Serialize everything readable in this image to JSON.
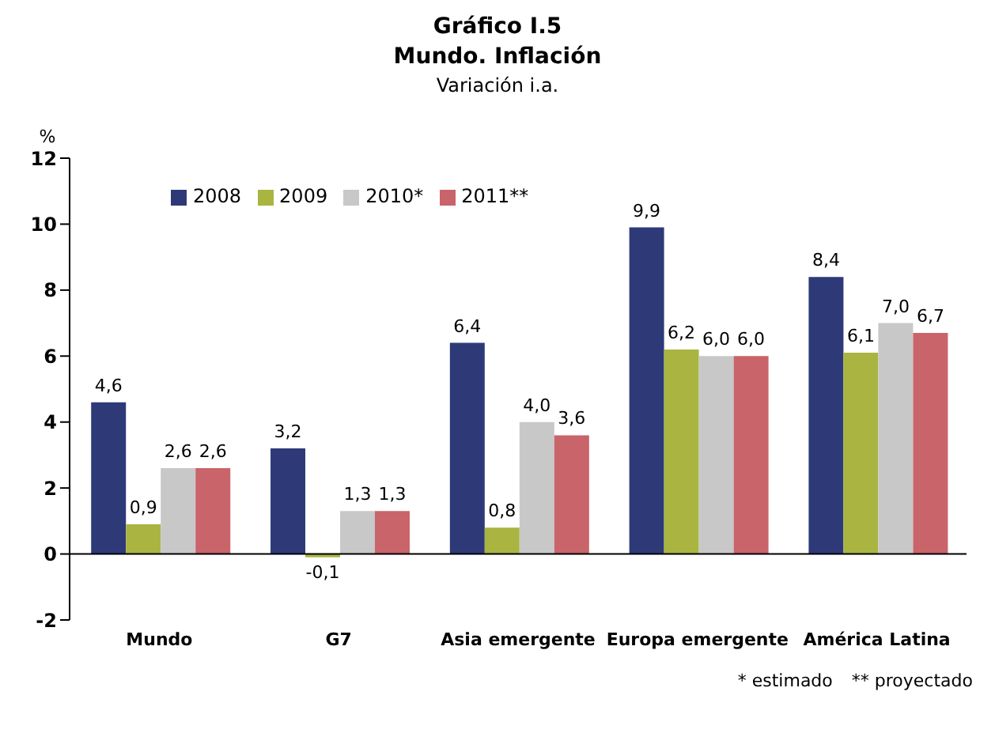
{
  "chart_data": {
    "type": "bar",
    "title": "Gráfico I.5\nMundo. Inflación",
    "subtitle": "Variación i.a.",
    "ylabel": "%",
    "categories": [
      "Mundo",
      "G7",
      "Asia emergente",
      "Europa emergente",
      "América Latina"
    ],
    "series": [
      {
        "name": "2008",
        "color": "#2e3a78",
        "values": [
          4.6,
          3.2,
          6.4,
          9.9,
          8.4
        ],
        "value_labels": [
          "4,6",
          "3,2",
          "6,4",
          "9,9",
          "8,4"
        ]
      },
      {
        "name": "2009",
        "color": "#a9b540",
        "values": [
          0.9,
          -0.1,
          0.8,
          6.2,
          6.1
        ],
        "value_labels": [
          "0,9",
          "-0,1",
          "0,8",
          "6,2",
          "6,1"
        ]
      },
      {
        "name": "2010*",
        "color": "#c8c8c8",
        "values": [
          2.6,
          1.3,
          4.0,
          6.0,
          7.0
        ],
        "value_labels": [
          "2,6",
          "1,3",
          "4,0",
          "6,0",
          "7,0"
        ]
      },
      {
        "name": "2011**",
        "color": "#c9646a",
        "values": [
          2.6,
          1.3,
          3.6,
          6.0,
          6.7
        ],
        "value_labels": [
          "2,6",
          "1,3",
          "3,6",
          "6,0",
          "6,7"
        ]
      }
    ],
    "ylim": [
      -2,
      12
    ],
    "yticks": [
      -2,
      0,
      2,
      4,
      6,
      8,
      10,
      12
    ],
    "grid": false,
    "legend": "top left",
    "ref_lines": [
      {
        "axis": "y",
        "value": 0,
        "color": "#000000"
      }
    ],
    "annotations": [
      "* estimado",
      "** proyectado"
    ]
  }
}
